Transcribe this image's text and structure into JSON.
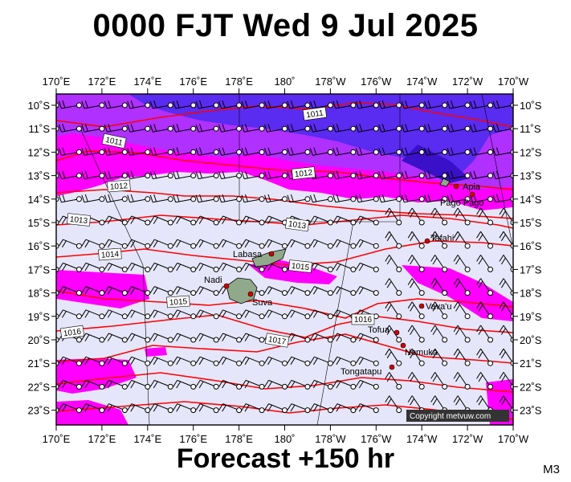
{
  "title": "0000 FJT Wed 9 Jul 2025",
  "footer": "Forecast +150 hr",
  "model_label": "M3",
  "copyright": "Copyright metvuw.com",
  "map": {
    "lon_labels": [
      "170˚E",
      "172˚E",
      "174˚E",
      "176˚E",
      "178˚E",
      "180˚",
      "178˚W",
      "176˚W",
      "174˚W",
      "172˚W",
      "170˚W"
    ],
    "lat_labels": [
      "10˚S",
      "11˚S",
      "12˚S",
      "13˚S",
      "14˚S",
      "15˚S",
      "16˚S",
      "17˚S",
      "18˚S",
      "19˚S",
      "20˚S",
      "21˚S",
      "22˚S",
      "23˚S"
    ],
    "isobar_labels": [
      "1011",
      "1011",
      "1012",
      "1012",
      "1013",
      "1013",
      "1014",
      "1015",
      "1015",
      "1016",
      "1016",
      "1017"
    ],
    "places": [
      "Apia",
      "Pago Pago",
      "Tafahi",
      "Labasa",
      "Nadi",
      "Suva",
      "Vava'u",
      "Tofua",
      "Nomuka",
      "Tongatapu"
    ]
  },
  "colors": {
    "background": "#e6e6fa",
    "rain_light": "#ff00ff",
    "rain_medium": "#b030ff",
    "rain_heavy": "#5a2bf0",
    "isobar": "#ff0000"
  }
}
